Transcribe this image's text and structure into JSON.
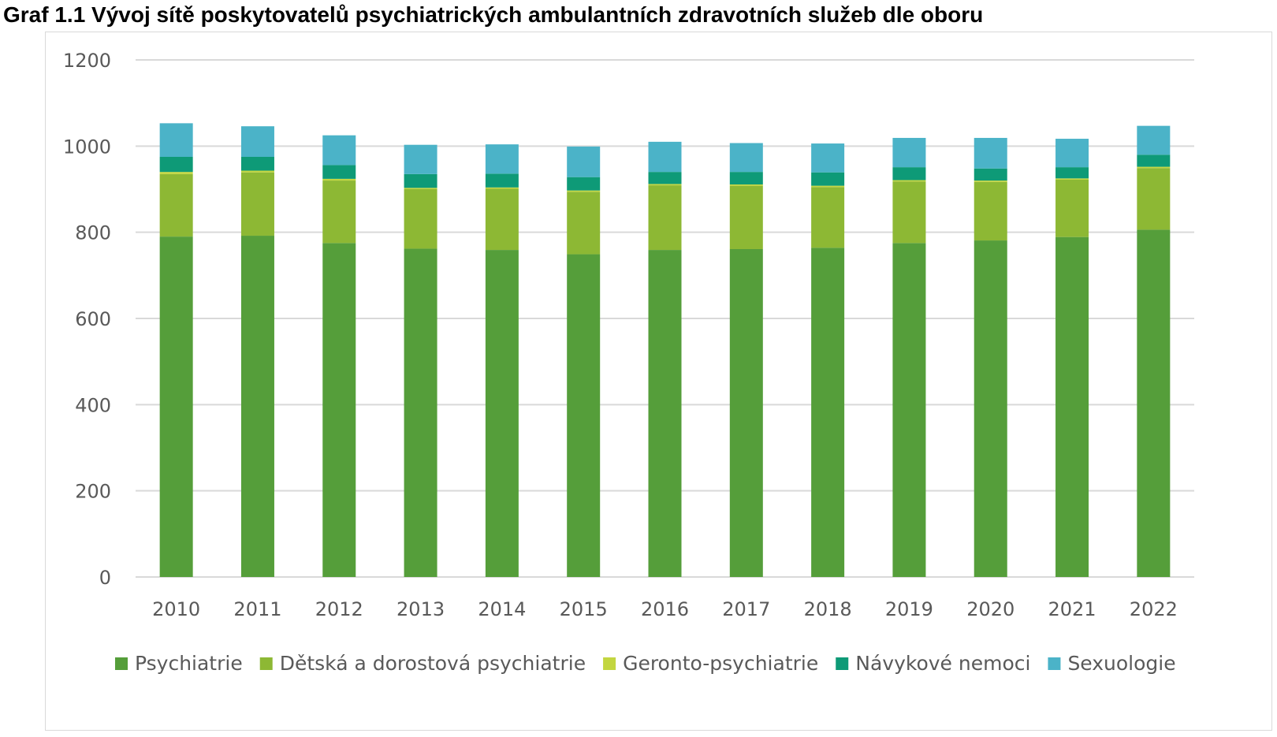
{
  "chart_data": {
    "type": "bar",
    "stacked": true,
    "title": "Graf 1.1 Vývoj sítě poskytovatelů psychiatrických ambulantních zdravotních služeb dle oboru",
    "xlabel": "",
    "ylabel": "",
    "ylim": [
      0,
      1200
    ],
    "yticks": [
      "0",
      "200",
      "400",
      "600",
      "800",
      "1000",
      "1200"
    ],
    "grid": true,
    "legend_position": "bottom",
    "categories": [
      "2010",
      "2011",
      "2012",
      "2013",
      "2014",
      "2015",
      "2016",
      "2017",
      "2018",
      "2019",
      "2020",
      "2021",
      "2022"
    ],
    "series": [
      {
        "name": "Psychiatrie",
        "color": "#559e3a",
        "values": [
          790,
          792,
          775,
          762,
          759,
          749,
          759,
          761,
          764,
          775,
          781,
          789,
          806
        ]
      },
      {
        "name": "Dětská a dorostová psychiatrie",
        "color": "#8db834",
        "values": [
          145,
          147,
          145,
          138,
          142,
          145,
          150,
          147,
          141,
          143,
          136,
          133,
          143
        ]
      },
      {
        "name": "Geronto-psychiatrie",
        "color": "#c3d640",
        "values": [
          5,
          4,
          4,
          3,
          3,
          3,
          3,
          3,
          3,
          3,
          3,
          3,
          3
        ]
      },
      {
        "name": "Návykové nemoci",
        "color": "#0e9a77",
        "values": [
          35,
          32,
          32,
          32,
          32,
          31,
          28,
          29,
          31,
          30,
          28,
          26,
          28
        ]
      },
      {
        "name": "Sexuologie",
        "color": "#4bb3c8",
        "values": [
          78,
          71,
          69,
          68,
          68,
          71,
          70,
          67,
          67,
          68,
          71,
          66,
          67
        ]
      }
    ]
  }
}
